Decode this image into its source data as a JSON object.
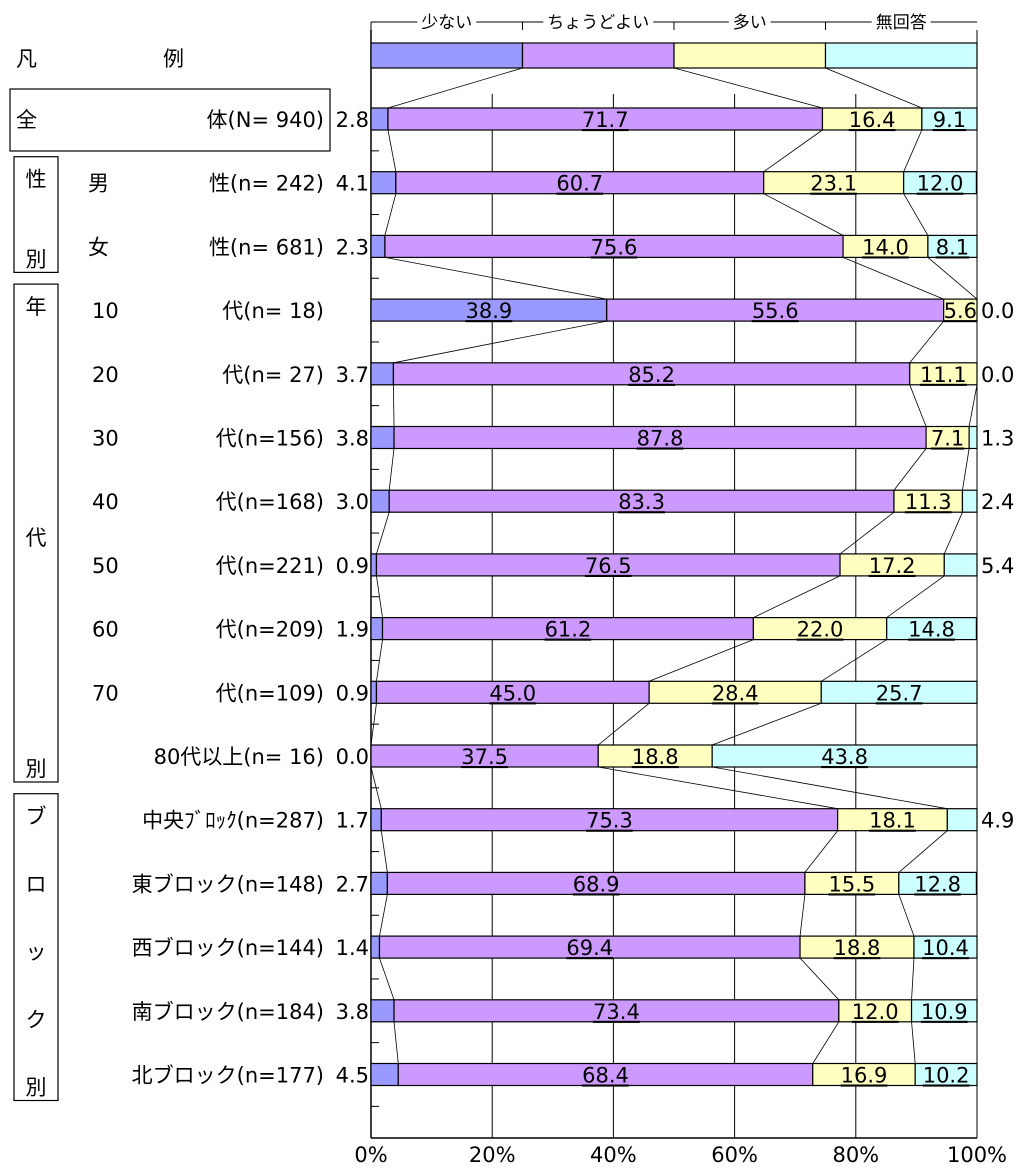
{
  "chart_data": {
    "type": "bar",
    "stacked": true,
    "orientation": "horizontal",
    "percent": true,
    "xlim": [
      0,
      100
    ],
    "xticks": [
      "0%",
      "20%",
      "40%",
      "60%",
      "80%",
      "100%"
    ],
    "grid": true,
    "legend_position": "top",
    "legend_row_label": "凡　　　　　　例",
    "series": [
      {
        "name": "少ない",
        "color": "#9999FF"
      },
      {
        "name": "ちょうどよい",
        "color": "#CC99FF"
      },
      {
        "name": "多い",
        "color": "#FFFFC0"
      },
      {
        "name": "無回答",
        "color": "#CCFFFF"
      }
    ],
    "groups": [
      {
        "label": "全",
        "rows": [
          0,
          0
        ]
      },
      {
        "label": "性別",
        "rows": [
          1,
          2
        ]
      },
      {
        "label": "年代別",
        "rows": [
          3,
          10
        ]
      },
      {
        "label": "ブロック別",
        "rows": [
          11,
          15
        ]
      }
    ],
    "rows": [
      {
        "prefix": "",
        "label": "体(N= 940)",
        "values": [
          2.8,
          71.7,
          16.4,
          9.1
        ],
        "labels": [
          "2.8",
          "71.7",
          "16.4",
          "9.1"
        ]
      },
      {
        "prefix": "男",
        "label": "性(n= 242)",
        "values": [
          4.1,
          60.7,
          23.1,
          12.0
        ],
        "labels": [
          "4.1",
          "60.7",
          "23.1",
          "12.0"
        ]
      },
      {
        "prefix": "女",
        "label": "性(n= 681)",
        "values": [
          2.3,
          75.6,
          14.0,
          8.1
        ],
        "labels": [
          "2.3",
          "75.6",
          "14.0",
          "8.1"
        ]
      },
      {
        "prefix": "10",
        "label": "代(n=  18)",
        "values": [
          38.9,
          55.6,
          5.6,
          0.0
        ],
        "labels": [
          "38.9",
          "55.6",
          "5.6",
          "0.0"
        ]
      },
      {
        "prefix": "20",
        "label": "代(n=  27)",
        "values": [
          3.7,
          85.2,
          11.1,
          0.0
        ],
        "labels": [
          "3.7",
          "85.2",
          "11.1",
          "0.0"
        ]
      },
      {
        "prefix": "30",
        "label": "代(n=156)",
        "values": [
          3.8,
          87.8,
          7.1,
          1.3
        ],
        "labels": [
          "3.8",
          "87.8",
          "7.1",
          "1.3"
        ]
      },
      {
        "prefix": "40",
        "label": "代(n=168)",
        "values": [
          3.0,
          83.3,
          11.3,
          2.4
        ],
        "labels": [
          "3.0",
          "83.3",
          "11.3",
          "2.4"
        ]
      },
      {
        "prefix": "50",
        "label": "代(n=221)",
        "values": [
          0.9,
          76.5,
          17.2,
          5.4
        ],
        "labels": [
          "0.9",
          "76.5",
          "17.2",
          "5.4"
        ]
      },
      {
        "prefix": "60",
        "label": "代(n=209)",
        "values": [
          1.9,
          61.2,
          22.0,
          14.8
        ],
        "labels": [
          "1.9",
          "61.2",
          "22.0",
          "14.8"
        ]
      },
      {
        "prefix": "70",
        "label": "代(n=109)",
        "values": [
          0.9,
          45.0,
          28.4,
          25.7
        ],
        "labels": [
          "0.9",
          "45.0",
          "28.4",
          "25.7"
        ]
      },
      {
        "prefix": "",
        "label": "80代以上(n=  16)",
        "values": [
          0.0,
          37.5,
          18.8,
          43.8
        ],
        "labels": [
          "0.0",
          "37.5",
          "18.8",
          "43.8"
        ]
      },
      {
        "prefix": "",
        "label": "中央ﾌﾞﾛｯｸ(n=287)",
        "values": [
          1.7,
          75.3,
          18.1,
          4.9
        ],
        "labels": [
          "1.7",
          "75.3",
          "18.1",
          "4.9"
        ]
      },
      {
        "prefix": "",
        "label": "東ブロック(n=148)",
        "values": [
          2.7,
          68.9,
          15.5,
          12.8
        ],
        "labels": [
          "2.7",
          "68.9",
          "15.5",
          "12.8"
        ]
      },
      {
        "prefix": "",
        "label": "西ブロック(n=144)",
        "values": [
          1.4,
          69.4,
          18.8,
          10.4
        ],
        "labels": [
          "1.4",
          "69.4",
          "18.8",
          "10.4"
        ]
      },
      {
        "prefix": "",
        "label": "南ブロック(n=184)",
        "values": [
          3.8,
          73.4,
          12.0,
          10.9
        ],
        "labels": [
          "3.8",
          "73.4",
          "12.0",
          "10.9"
        ]
      },
      {
        "prefix": "",
        "label": "北ブロック(n=177)",
        "values": [
          4.5,
          68.4,
          16.9,
          10.2
        ],
        "labels": [
          "4.5",
          "68.4",
          "16.9",
          "10.2"
        ]
      }
    ]
  }
}
